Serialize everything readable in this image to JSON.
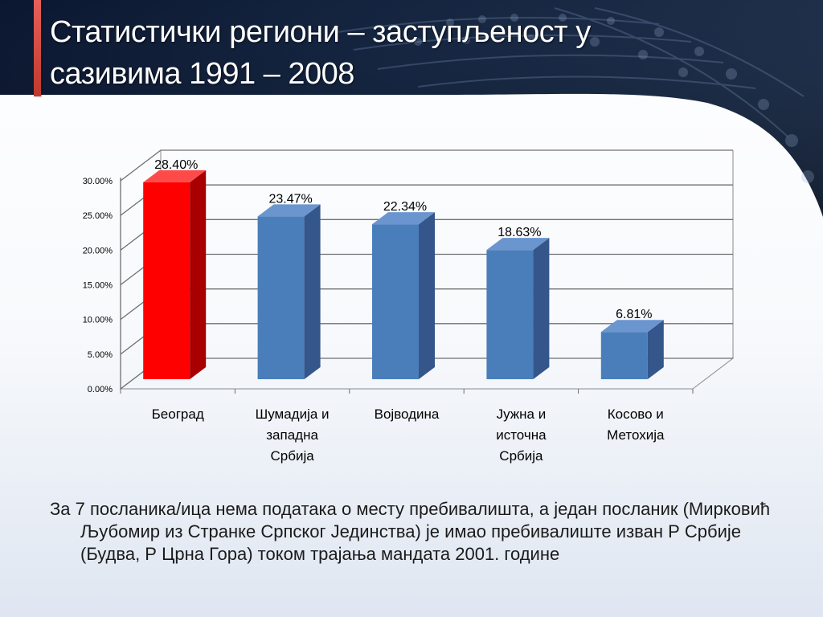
{
  "title": "Статистички региони – заступљеност у сазивима 1991 – 2008",
  "note": "За 7 посланика/ица нема података о месту пребивалишта, а један посланик (Мирковић Љубомир из Странке Српског Јединства) је имао пребивалиште изван Р Србије (Будва, Р Црна Гора) током трајања мандата 2001. године",
  "colors": {
    "highlight": "#ff0000",
    "highlight_side": "#a80000",
    "highlight_top": "#ff4a4a",
    "bar": "#4a7ebb",
    "bar_side": "#34568a",
    "bar_top": "#6b95cf",
    "banner_dark": "#0d1a33",
    "accent": "#d9534f"
  },
  "chart_data": {
    "type": "bar",
    "title": "",
    "xlabel": "",
    "ylabel": "",
    "ylim": [
      0,
      0.3
    ],
    "grid": true,
    "three_d": true,
    "y_ticks": [
      "0.00%",
      "5.00%",
      "10.00%",
      "15.00%",
      "20.00%",
      "25.00%",
      "30.00%"
    ],
    "y_tick_values": [
      0,
      0.05,
      0.1,
      0.15,
      0.2,
      0.25,
      0.3
    ],
    "categories": [
      [
        "Београд"
      ],
      [
        "Шумадија и",
        "западна",
        "Србија"
      ],
      [
        "Војводина"
      ],
      [
        "Јужна и",
        "источна",
        "Србија"
      ],
      [
        "Косово и",
        "Метохија"
      ]
    ],
    "values": [
      0.284,
      0.2347,
      0.2234,
      0.1863,
      0.0681
    ],
    "data_labels": [
      "28.40%",
      "23.47%",
      "22.34%",
      "18.63%",
      "6.81%"
    ],
    "highlighted_index": 0
  }
}
